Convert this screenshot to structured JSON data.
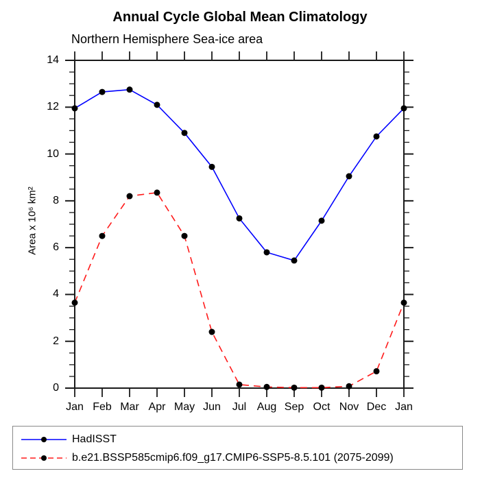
{
  "chart_data": {
    "type": "line",
    "title": "Annual Cycle Global Mean Climatology",
    "subtitle": "Northern Hemisphere Sea-ice area",
    "ylabel": "Area x 10⁶ km²",
    "categories": [
      "Jan",
      "Feb",
      "Mar",
      "Apr",
      "May",
      "Jun",
      "Jul",
      "Aug",
      "Sep",
      "Oct",
      "Nov",
      "Dec",
      "Jan"
    ],
    "ylim": [
      0,
      14
    ],
    "yticks": [
      0,
      2,
      4,
      6,
      8,
      10,
      12,
      14
    ],
    "ytick_minor_step": 0.5,
    "grid": false,
    "legend_position": "bottom-left",
    "axis_color": "#1a1a1a",
    "marker_color": "#000000",
    "series": [
      {
        "name": "HadISST",
        "color": "#0000ff",
        "line_style": "solid",
        "marker": "filled-circle",
        "values": [
          11.95,
          12.65,
          12.75,
          12.1,
          10.9,
          9.45,
          7.25,
          5.8,
          5.45,
          7.15,
          9.05,
          10.75,
          11.95
        ]
      },
      {
        "name": "b.e21.BSSP585cmip6.f09_g17.CMIP6-SSP5-8.5.101 (2075-2099)",
        "color": "#ff1a1a",
        "line_style": "dashed",
        "marker": "filled-circle",
        "values": [
          3.65,
          6.5,
          8.2,
          8.35,
          6.5,
          2.4,
          0.15,
          0.05,
          0.02,
          0.02,
          0.08,
          0.72,
          3.65
        ]
      }
    ]
  }
}
